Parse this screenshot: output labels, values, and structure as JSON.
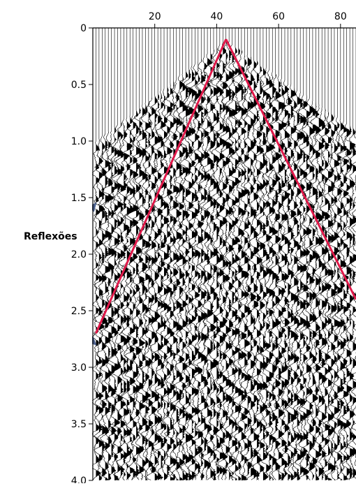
{
  "chart_data": {
    "type": "seismic_shot_gather",
    "x_ticks": [
      "20",
      "40",
      "60",
      "80"
    ],
    "x_tick_values": [
      20,
      40,
      60,
      80
    ],
    "y_ticks": [
      "0",
      "0.5",
      "1.0",
      "1.5",
      "2.0",
      "2.5",
      "3.0",
      "3.5",
      "4.0"
    ],
    "y_tick_values": [
      0,
      0.5,
      1.0,
      1.5,
      2.0,
      2.5,
      3.0,
      3.5,
      4.0
    ],
    "xlim": [
      0,
      85
    ],
    "ylim": [
      4.0,
      0
    ],
    "trace_range": [
      1,
      85
    ],
    "source_trace": 43,
    "first_break": {
      "apex": {
        "trace": 43,
        "time": 0.1
      },
      "left_edge": {
        "trace": 1,
        "time": 1.0
      },
      "right_edge": {
        "trace": 85,
        "time": 0.9
      }
    },
    "red_lines": {
      "color": "#e0194a",
      "apex": {
        "trace": 43,
        "time": 0.1
      },
      "left_end": {
        "trace": 1,
        "time": 2.7
      },
      "right_end": {
        "trace": 85,
        "time": 2.4
      }
    },
    "annotation": {
      "label": "Reflexões",
      "color": "#4a5f8c",
      "vertex": {
        "trace": -21,
        "time": 2.25
      },
      "targets": [
        {
          "trace": 1,
          "time": 1.55
        },
        {
          "trace": 1,
          "time": 2.8
        }
      ]
    }
  }
}
